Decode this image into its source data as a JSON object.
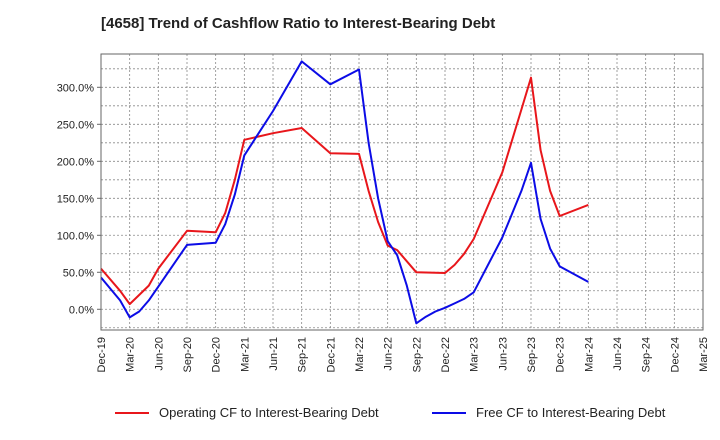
{
  "title": "[4658]  Trend of Cashflow Ratio to Interest-Bearing Debt",
  "chart_data": {
    "type": "line",
    "title": "[4658]  Trend of Cashflow Ratio to Interest-Bearing Debt",
    "xlabel": "",
    "ylabel": "",
    "x_start": "2019-12",
    "x_end": "2025-03",
    "x_ticks": [
      "Dec-19",
      "Mar-20",
      "Jun-20",
      "Sep-20",
      "Dec-20",
      "Mar-21",
      "Jun-21",
      "Sep-21",
      "Dec-21",
      "Mar-22",
      "Jun-22",
      "Sep-22",
      "Dec-22",
      "Mar-23",
      "Jun-23",
      "Sep-23",
      "Dec-23",
      "Mar-24",
      "Jun-24",
      "Sep-24",
      "Dec-24",
      "Mar-25"
    ],
    "y_ticks": [
      "0.0%",
      "50.0%",
      "100.0%",
      "150.0%",
      "200.0%",
      "250.0%",
      "300.0%"
    ],
    "y_tick_values": [
      0,
      50,
      100,
      150,
      200,
      250,
      300
    ],
    "ylim": [
      -28,
      345
    ],
    "grid": true,
    "legend_position": "bottom",
    "series": [
      {
        "name": "Operating CF to Interest-Bearing Debt",
        "color": "#e8161b",
        "points": [
          [
            "2019-12",
            55
          ],
          [
            "2020-02",
            25
          ],
          [
            "2020-03",
            7
          ],
          [
            "2020-05",
            32
          ],
          [
            "2020-06",
            55
          ],
          [
            "2020-09",
            106
          ],
          [
            "2020-12",
            104
          ],
          [
            "2021-01",
            130
          ],
          [
            "2021-02",
            175
          ],
          [
            "2021-03",
            229
          ],
          [
            "2021-06",
            238
          ],
          [
            "2021-09",
            245
          ],
          [
            "2021-12",
            211
          ],
          [
            "2022-03",
            210
          ],
          [
            "2022-04",
            160
          ],
          [
            "2022-05",
            118
          ],
          [
            "2022-06",
            86
          ],
          [
            "2022-07",
            80
          ],
          [
            "2022-09",
            50
          ],
          [
            "2022-12",
            49
          ],
          [
            "2023-01",
            60
          ],
          [
            "2023-02",
            75
          ],
          [
            "2023-03",
            95
          ],
          [
            "2023-06",
            185
          ],
          [
            "2023-08",
            270
          ],
          [
            "2023-09",
            313
          ],
          [
            "2023-10",
            215
          ],
          [
            "2023-11",
            160
          ],
          [
            "2023-12",
            126
          ],
          [
            "2024-03",
            141
          ]
        ]
      },
      {
        "name": "Free CF to Interest-Bearing Debt",
        "color": "#0c0ce6",
        "points": [
          [
            "2019-12",
            43
          ],
          [
            "2020-02",
            12
          ],
          [
            "2020-03",
            -11
          ],
          [
            "2020-04",
            -3
          ],
          [
            "2020-05",
            12
          ],
          [
            "2020-09",
            87
          ],
          [
            "2020-12",
            90
          ],
          [
            "2021-01",
            115
          ],
          [
            "2021-02",
            155
          ],
          [
            "2021-03",
            208
          ],
          [
            "2021-06",
            268
          ],
          [
            "2021-09",
            335
          ],
          [
            "2021-12",
            304
          ],
          [
            "2022-03",
            324
          ],
          [
            "2022-04",
            225
          ],
          [
            "2022-05",
            150
          ],
          [
            "2022-06",
            92
          ],
          [
            "2022-07",
            73
          ],
          [
            "2022-08",
            32
          ],
          [
            "2022-09",
            -19
          ],
          [
            "2022-10",
            -10
          ],
          [
            "2022-11",
            -3
          ],
          [
            "2022-12",
            2
          ],
          [
            "2023-01",
            8
          ],
          [
            "2023-02",
            14
          ],
          [
            "2023-03",
            23
          ],
          [
            "2023-06",
            97
          ],
          [
            "2023-08",
            160
          ],
          [
            "2023-09",
            198
          ],
          [
            "2023-10",
            122
          ],
          [
            "2023-11",
            82
          ],
          [
            "2023-12",
            58
          ],
          [
            "2024-03",
            37
          ]
        ]
      }
    ]
  }
}
